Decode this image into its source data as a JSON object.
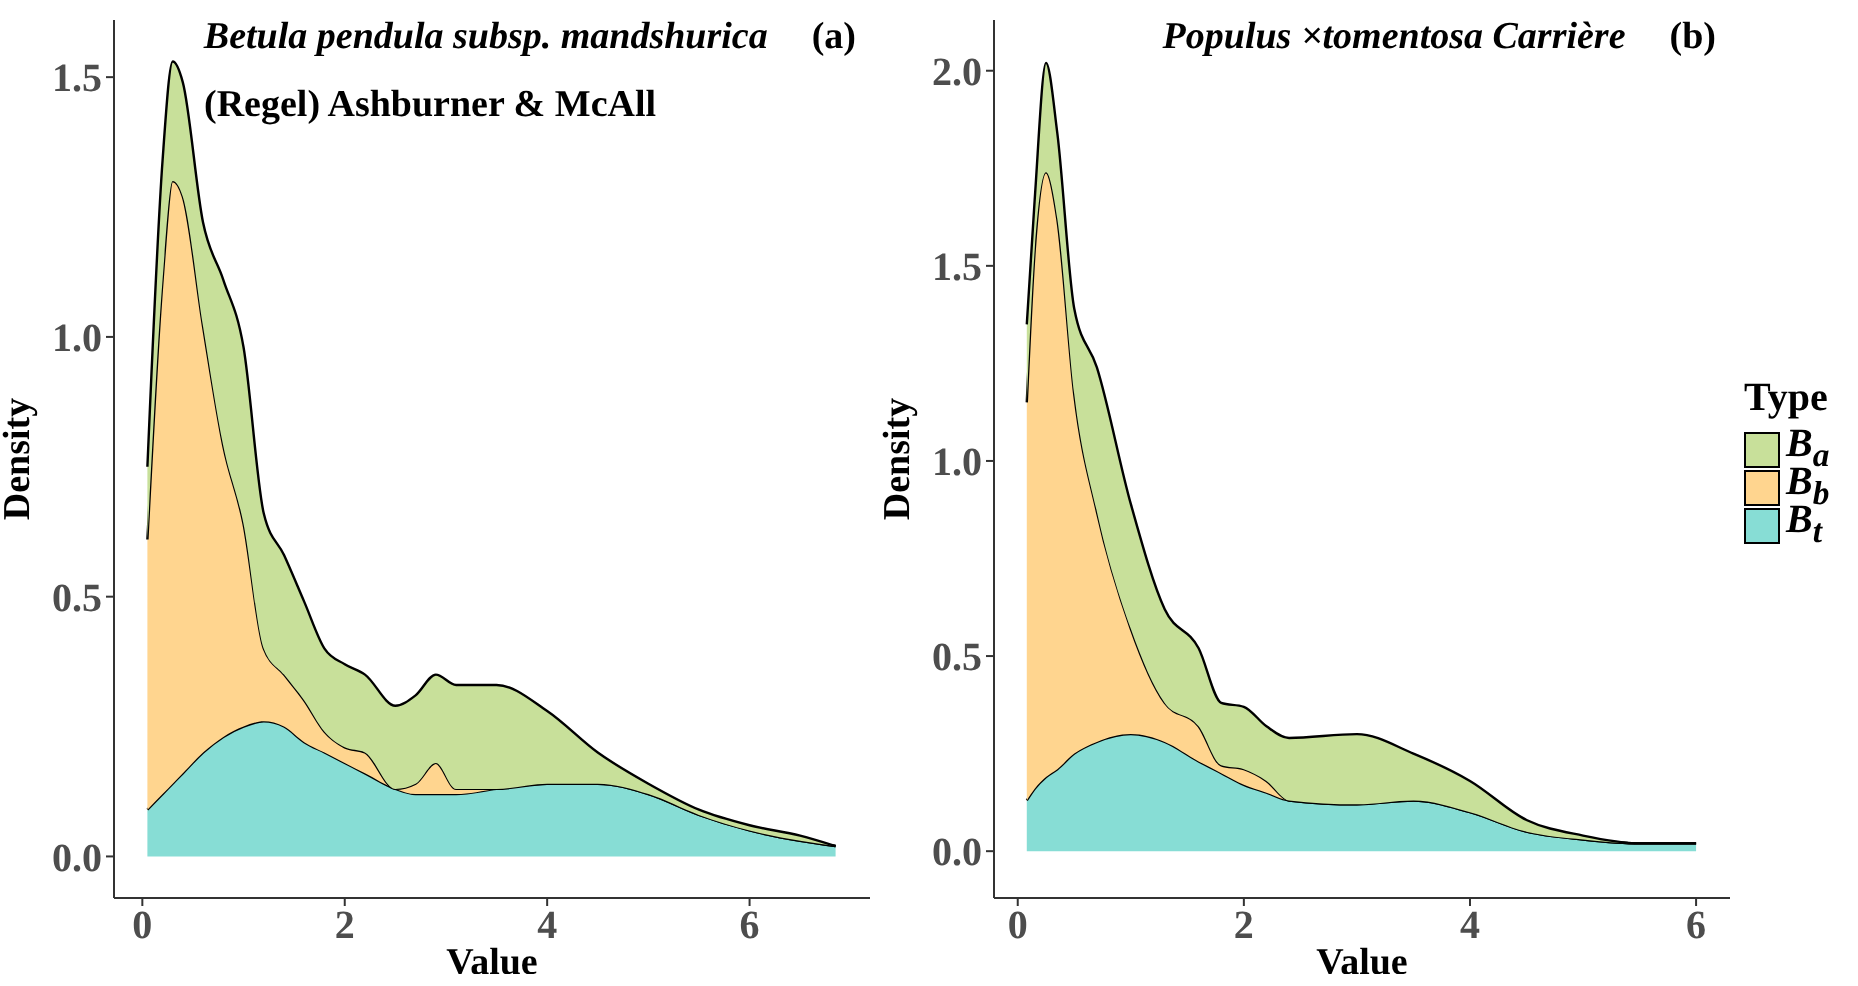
{
  "chart_data": [
    {
      "type": "area",
      "title": "Betula pendula subsp. mandshurica",
      "subtitle": "(Regel) Ashburner & McAll",
      "annotations": [
        "(a)"
      ],
      "xlabel": "Value",
      "ylabel": "Density",
      "stacked": true,
      "x": [
        0.05,
        0.2,
        0.3,
        0.4,
        0.6,
        0.8,
        1.0,
        1.2,
        1.4,
        1.6,
        1.8,
        2.0,
        2.2,
        2.5,
        2.7,
        2.9,
        3.1,
        3.5,
        4.0,
        4.5,
        5.0,
        5.5,
        6.0,
        6.5,
        6.85
      ],
      "series": [
        {
          "color": "#87ddd5",
          "values": [
            0.09,
            0.12,
            0.14,
            0.16,
            0.2,
            0.23,
            0.25,
            0.26,
            0.25,
            0.22,
            0.2,
            0.18,
            0.16,
            0.13,
            0.12,
            0.12,
            0.12,
            0.13,
            0.14,
            0.14,
            0.12,
            0.08,
            0.05,
            0.03,
            0.02
          ]
        },
        {
          "color": "#ffd58f",
          "values": [
            0.52,
            0.99,
            1.16,
            1.11,
            0.82,
            0.56,
            0.39,
            0.14,
            0.1,
            0.08,
            0.04,
            0.03,
            0.04,
            0,
            0.02,
            0.06,
            0.01,
            0,
            0,
            0,
            0,
            0,
            0,
            0,
            0
          ]
        },
        {
          "color": "#c8e09a",
          "values": [
            0.14,
            0.23,
            0.23,
            0.22,
            0.2,
            0.32,
            0.34,
            0.26,
            0.23,
            0.19,
            0.16,
            0.16,
            0.15,
            0.16,
            0.17,
            0.17,
            0.2,
            0.2,
            0.14,
            0.06,
            0.02,
            0.01,
            0.01,
            0.01,
            0
          ]
        }
      ],
      "xlim": [
        -0.28,
        7.19
      ],
      "xticks": [
        0,
        2,
        4,
        6
      ],
      "ylim": [
        -0.08,
        1.61
      ],
      "yticks": [
        {
          "value": 0,
          "label": "0.0"
        },
        {
          "value": 0.5,
          "label": "0.5"
        },
        {
          "value": 1,
          "label": "1.0"
        },
        {
          "value": 1.5,
          "label": "1.5"
        }
      ],
      "grid": false,
      "legend": false
    },
    {
      "type": "area",
      "title": "Populus ×tomentosa Carrière",
      "annotations": [
        "(b)"
      ],
      "xlabel": "Value",
      "ylabel": "Density",
      "stacked": true,
      "legend_title": "Type",
      "x": [
        0.08,
        0.15,
        0.25,
        0.35,
        0.5,
        0.7,
        1.0,
        1.3,
        1.6,
        1.8,
        2.0,
        2.2,
        2.4,
        3.0,
        3.5,
        4.0,
        4.5,
        5.0,
        5.5,
        6.0
      ],
      "series": [
        {
          "name": "B$_{t}$",
          "color": "#87ddd5",
          "values": [
            0.13,
            0.16,
            0.19,
            0.21,
            0.25,
            0.28,
            0.3,
            0.28,
            0.23,
            0.2,
            0.17,
            0.15,
            0.13,
            0.12,
            0.13,
            0.1,
            0.05,
            0.03,
            0.02,
            0.02
          ]
        },
        {
          "name": "B$_{b}$",
          "color": "#ffd58f",
          "values": [
            1.02,
            1.38,
            1.55,
            1.41,
            0.92,
            0.59,
            0.27,
            0.1,
            0.09,
            0.02,
            0.04,
            0.03,
            0,
            0,
            0,
            0,
            0,
            0,
            0,
            0
          ]
        },
        {
          "name": "B$_{a}$",
          "color": "#c8e09a",
          "values": [
            0.2,
            0.13,
            0.28,
            0.22,
            0.22,
            0.37,
            0.32,
            0.24,
            0.2,
            0.16,
            0.16,
            0.14,
            0.16,
            0.18,
            0.12,
            0.08,
            0.03,
            0.01,
            0,
            0
          ]
        }
      ],
      "xlim": [
        -0.21,
        6.3
      ],
      "xticks": [
        0,
        2,
        4,
        6
      ],
      "ylim": [
        -0.12,
        2.13
      ],
      "yticks": [
        {
          "value": 0,
          "label": "0.0"
        },
        {
          "value": 0.5,
          "label": "0.5"
        },
        {
          "value": 1,
          "label": "1.0"
        },
        {
          "value": 1.5,
          "label": "1.5"
        },
        {
          "value": 2,
          "label": "2.0"
        }
      ],
      "grid": false,
      "legend": "right"
    }
  ]
}
